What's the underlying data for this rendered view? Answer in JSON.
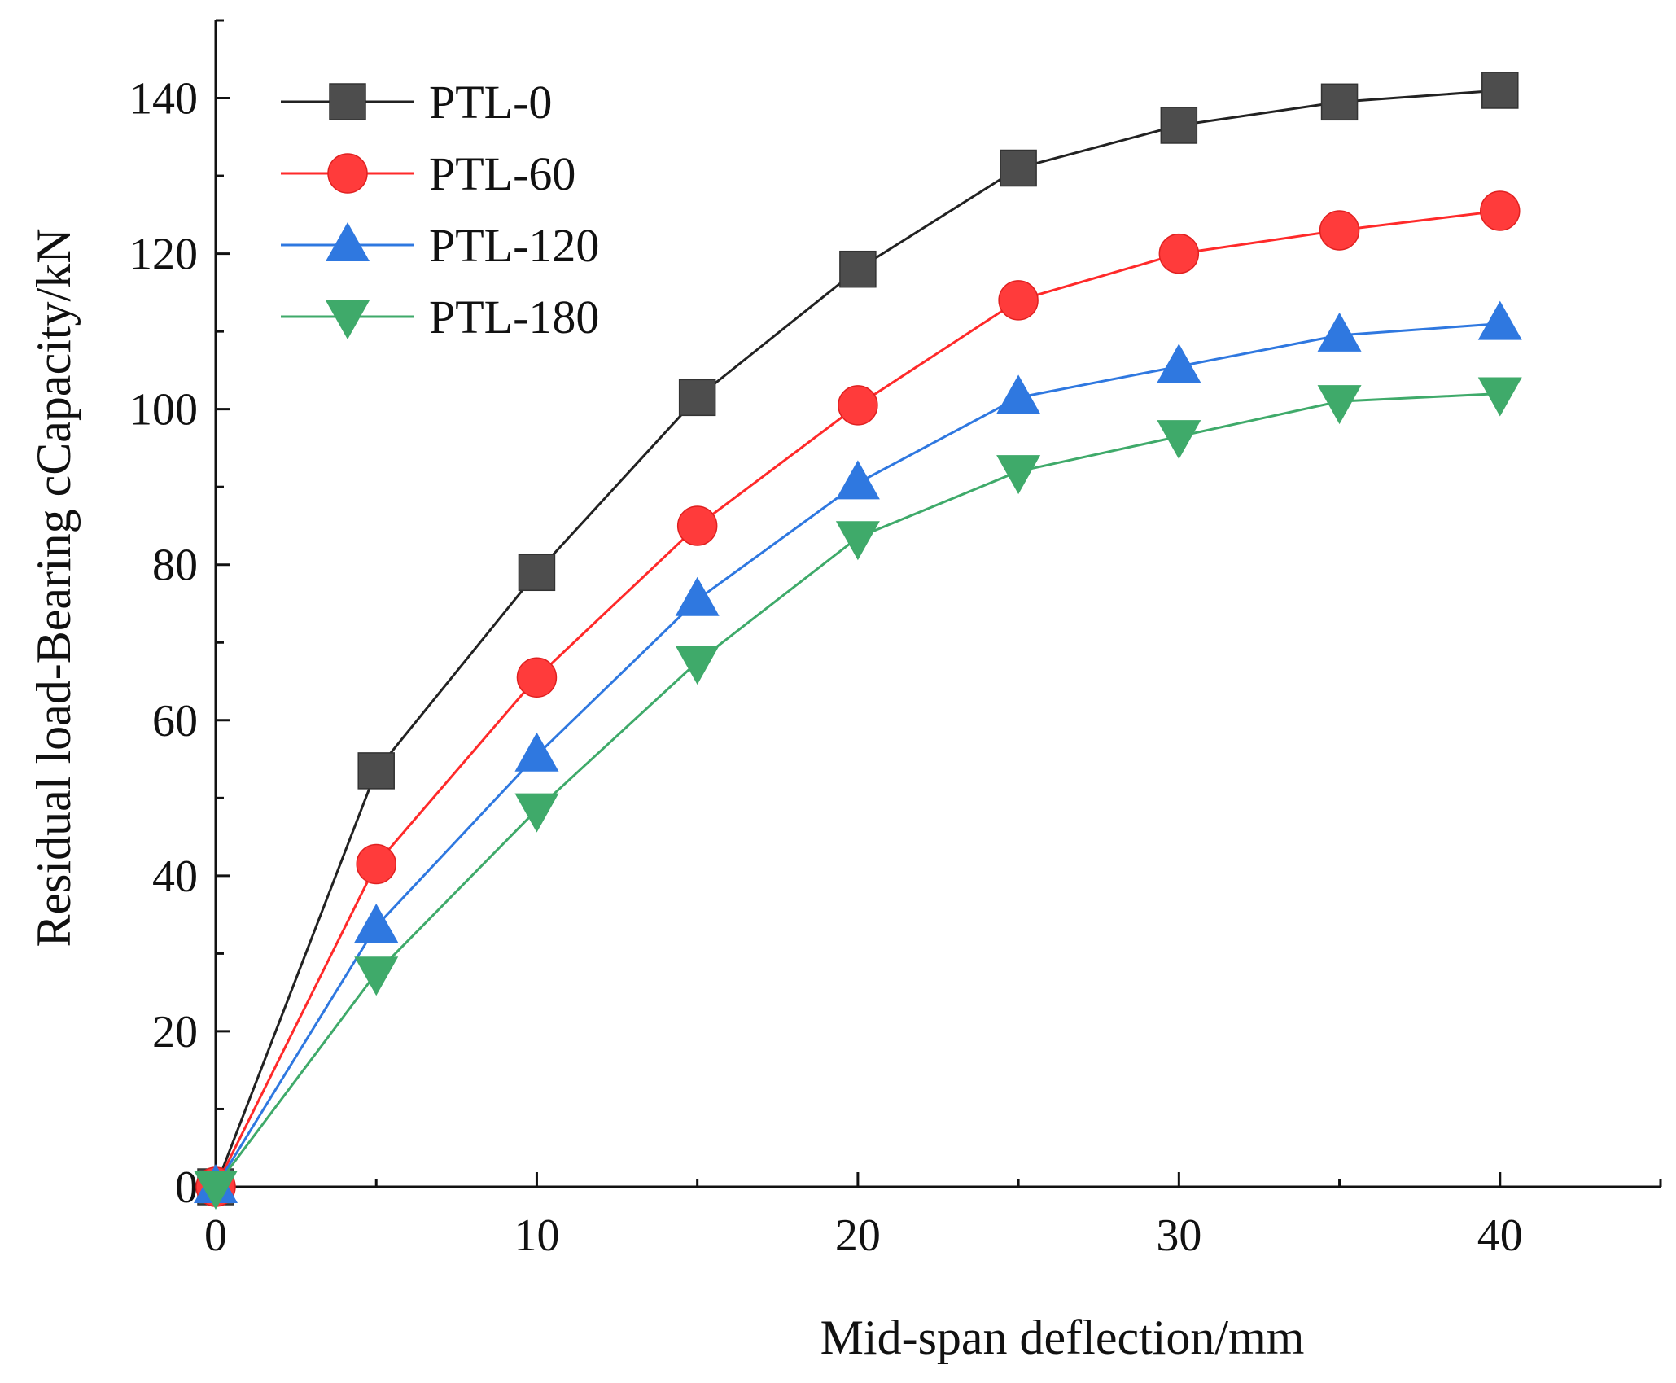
{
  "chart_data": {
    "type": "line",
    "title": "",
    "xlabel": "Mid-span deflection/mm",
    "ylabel": "Residual load-Bearing cCapacity/kN",
    "xlim": [
      0,
      45
    ],
    "ylim": [
      0,
      150
    ],
    "x_ticks": [
      0,
      10,
      20,
      30,
      40
    ],
    "y_ticks": [
      0,
      20,
      40,
      60,
      80,
      100,
      120,
      140
    ],
    "grid": false,
    "legend_position": "top-left",
    "x": [
      0,
      5,
      10,
      15,
      20,
      25,
      30,
      35,
      40
    ],
    "series": [
      {
        "name": "PTL-0",
        "marker": "square",
        "color": "#4d4d4d",
        "line_color": "#222222",
        "values": [
          0,
          53.5,
          79,
          101.5,
          118,
          131,
          136.5,
          139.5,
          141
        ]
      },
      {
        "name": "PTL-60",
        "marker": "circle",
        "color": "#ff3b3b",
        "line_color": "#ff2a2a",
        "values": [
          0,
          41.5,
          65.5,
          85,
          100.5,
          114,
          120,
          123,
          125.5
        ]
      },
      {
        "name": "PTL-120",
        "marker": "triangle-up",
        "color": "#2f78e0",
        "line_color": "#2f78e0",
        "values": [
          0,
          33.5,
          55.5,
          75.5,
          90.5,
          101.5,
          105.5,
          109.5,
          111
        ]
      },
      {
        "name": "PTL-180",
        "marker": "triangle-down",
        "color": "#3faa6a",
        "line_color": "#3faa6a",
        "values": [
          0,
          27.5,
          48.5,
          67.5,
          83.5,
          92,
          96.5,
          101,
          102
        ]
      }
    ]
  }
}
